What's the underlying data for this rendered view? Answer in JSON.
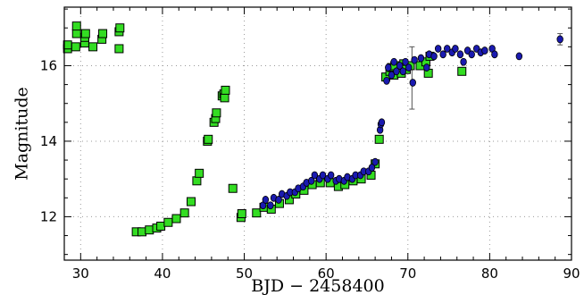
{
  "chart_data": {
    "type": "scatter",
    "title": "",
    "xlabel": "BJD − 2458400",
    "ylabel": "Magnitude",
    "xlim": [
      28,
      90
    ],
    "ylim": [
      17.55,
      10.85
    ],
    "y_inverted": true,
    "grid": true,
    "x_ticks": [
      30,
      40,
      50,
      60,
      70,
      80,
      90
    ],
    "y_ticks": [
      12,
      14,
      16
    ],
    "colors": {
      "green": "#33dd22",
      "blue": "#1a1ab0"
    },
    "series": [
      {
        "marker": "square",
        "color": "#33dd22",
        "points": [
          [
            28.4,
            16.45
          ],
          [
            28.4,
            16.55
          ],
          [
            29.4,
            16.5
          ],
          [
            29.5,
            16.85
          ],
          [
            29.5,
            17.05
          ],
          [
            30.5,
            16.6
          ],
          [
            30.5,
            16.75
          ],
          [
            30.6,
            16.85
          ],
          [
            31.5,
            16.5
          ],
          [
            32.6,
            16.7
          ],
          [
            32.7,
            16.85
          ],
          [
            34.7,
            16.45
          ],
          [
            34.7,
            16.9
          ],
          [
            34.8,
            17.0
          ],
          [
            36.8,
            11.6
          ],
          [
            37.5,
            11.6
          ],
          [
            38.4,
            11.65
          ],
          [
            39.3,
            11.7
          ],
          [
            39.8,
            11.75
          ],
          [
            40.7,
            11.85
          ],
          [
            41.7,
            11.95
          ],
          [
            42.7,
            12.1
          ],
          [
            43.5,
            12.4
          ],
          [
            44.2,
            12.95
          ],
          [
            44.5,
            13.15
          ],
          [
            45.5,
            14.0
          ],
          [
            45.6,
            14.05
          ],
          [
            46.3,
            14.5
          ],
          [
            46.5,
            14.6
          ],
          [
            46.6,
            14.75
          ],
          [
            47.3,
            15.2
          ],
          [
            47.5,
            15.25
          ],
          [
            47.6,
            15.15
          ],
          [
            47.7,
            15.35
          ],
          [
            48.6,
            12.75
          ],
          [
            49.6,
            11.98
          ],
          [
            49.7,
            12.08
          ],
          [
            51.5,
            12.1
          ],
          [
            52.4,
            12.25
          ],
          [
            53.3,
            12.2
          ],
          [
            54.3,
            12.35
          ],
          [
            55.5,
            12.45
          ],
          [
            56.3,
            12.6
          ],
          [
            57.3,
            12.7
          ],
          [
            58.3,
            12.85
          ],
          [
            59.3,
            12.9
          ],
          [
            60.5,
            12.9
          ],
          [
            61.5,
            12.8
          ],
          [
            62.3,
            12.85
          ],
          [
            63.3,
            12.95
          ],
          [
            64.3,
            13.0
          ],
          [
            65.5,
            13.1
          ],
          [
            66.0,
            13.4
          ],
          [
            66.5,
            14.05
          ],
          [
            67.3,
            15.7
          ],
          [
            67.8,
            15.85
          ],
          [
            68.0,
            15.95
          ],
          [
            68.3,
            15.75
          ],
          [
            68.4,
            16.0
          ],
          [
            69.2,
            15.8
          ],
          [
            69.5,
            16.05
          ],
          [
            69.8,
            15.9
          ],
          [
            70.3,
            16.0
          ],
          [
            71.5,
            16.0
          ],
          [
            72.2,
            16.1
          ],
          [
            72.5,
            15.8
          ],
          [
            72.7,
            16.25
          ],
          [
            76.6,
            15.85
          ]
        ]
      },
      {
        "marker": "circle",
        "color": "#1a1ab0",
        "points": [
          [
            52.3,
            12.3
          ],
          [
            52.6,
            12.45
          ],
          [
            53.2,
            12.3
          ],
          [
            53.6,
            12.5
          ],
          [
            54.2,
            12.45
          ],
          [
            54.6,
            12.6
          ],
          [
            55.2,
            12.55
          ],
          [
            55.6,
            12.65
          ],
          [
            56.2,
            12.65
          ],
          [
            56.6,
            12.75
          ],
          [
            57.2,
            12.8
          ],
          [
            57.6,
            12.9
          ],
          [
            58.2,
            12.95
          ],
          [
            58.6,
            13.1
          ],
          [
            59.2,
            13.0
          ],
          [
            59.6,
            13.1
          ],
          [
            60.2,
            13.0
          ],
          [
            60.6,
            13.1
          ],
          [
            61.2,
            12.95
          ],
          [
            61.6,
            13.0
          ],
          [
            62.2,
            12.95
          ],
          [
            62.6,
            13.05
          ],
          [
            63.2,
            13.0
          ],
          [
            63.6,
            13.1
          ],
          [
            64.2,
            13.1
          ],
          [
            64.6,
            13.2
          ],
          [
            65.2,
            13.2
          ],
          [
            65.6,
            13.3
          ],
          [
            66.0,
            13.45
          ],
          [
            66.6,
            14.3
          ],
          [
            66.7,
            14.45
          ],
          [
            66.8,
            14.5
          ],
          [
            67.4,
            15.6
          ],
          [
            67.6,
            15.95
          ],
          [
            68.0,
            15.75
          ],
          [
            68.3,
            16.1
          ],
          [
            68.6,
            15.85
          ],
          [
            69.0,
            16.0
          ],
          [
            69.4,
            15.85
          ],
          [
            69.7,
            16.1
          ],
          [
            70.1,
            15.95
          ],
          [
            70.6,
            15.55
          ],
          [
            70.8,
            16.15
          ],
          [
            71.6,
            16.2
          ],
          [
            72.3,
            15.95
          ],
          [
            72.6,
            16.3
          ],
          [
            73.2,
            16.25
          ],
          [
            73.7,
            16.45
          ],
          [
            74.3,
            16.3
          ],
          [
            74.8,
            16.45
          ],
          [
            75.4,
            16.35
          ],
          [
            75.8,
            16.45
          ],
          [
            76.4,
            16.3
          ],
          [
            76.8,
            16.1
          ],
          [
            77.3,
            16.4
          ],
          [
            77.8,
            16.3
          ],
          [
            78.4,
            16.45
          ],
          [
            78.9,
            16.35
          ],
          [
            79.4,
            16.4
          ],
          [
            80.3,
            16.45
          ],
          [
            80.6,
            16.3
          ],
          [
            83.6,
            16.25
          ],
          [
            88.6,
            16.7
          ]
        ]
      }
    ],
    "error_bars": [
      {
        "x": 70.5,
        "y_low": 14.85,
        "y_high": 16.5
      },
      {
        "x": 88.6,
        "y_low": 16.55,
        "y_high": 16.85
      }
    ]
  }
}
